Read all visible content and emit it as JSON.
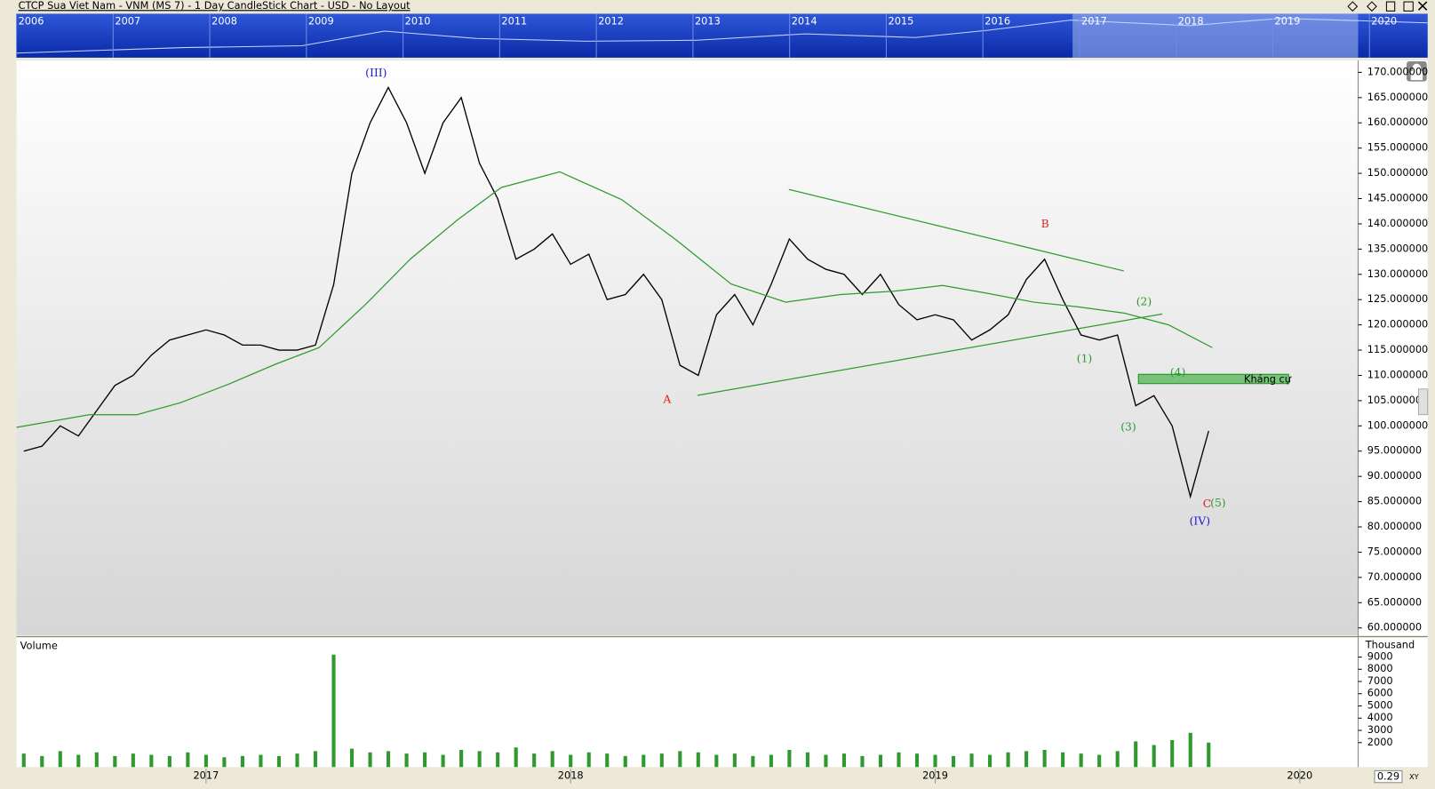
{
  "chart_data": [
    {
      "type": "line",
      "title": "CTCP Sua Viet Nam - VNM (MS 7) - 1 Day CandleStick Chart - USD - No Layout",
      "navigator_years": [
        "2006",
        "2007",
        "2008",
        "2009",
        "2010",
        "2011",
        "2012",
        "2013",
        "2014",
        "2015",
        "2016",
        "2017",
        "2018",
        "2019",
        "2020"
      ],
      "series": [
        {
          "color": "#000000",
          "x": [
            2016.5,
            2016.55,
            2016.6,
            2016.65,
            2016.7,
            2016.75,
            2016.8,
            2016.85,
            2016.9,
            2016.95,
            2017,
            2017.05,
            2017.1,
            2017.15,
            2017.2,
            2017.25,
            2017.3,
            2017.35,
            2017.4,
            2017.45,
            2017.5,
            2017.55,
            2017.6,
            2017.65,
            2017.7,
            2017.75,
            2017.8,
            2017.85,
            2017.9,
            2017.95,
            2018,
            2018.05,
            2018.1,
            2018.15,
            2018.2,
            2018.25,
            2018.3,
            2018.35,
            2018.4,
            2018.45,
            2018.5,
            2018.55,
            2018.6,
            2018.65,
            2018.7,
            2018.75,
            2018.8,
            2018.85,
            2018.9,
            2018.95,
            2019,
            2019.05,
            2019.1,
            2019.15,
            2019.2,
            2019.25,
            2019.3,
            2019.35,
            2019.4,
            2019.45,
            2019.5,
            2019.55,
            2019.6,
            2019.65,
            2019.7,
            2019.75
          ],
          "values": [
            95,
            96,
            100,
            98,
            103,
            108,
            110,
            114,
            117,
            118,
            119,
            118,
            116,
            116,
            115,
            115,
            116,
            128,
            150,
            160,
            167,
            160,
            150,
            160,
            165,
            152,
            145,
            133,
            135,
            138,
            132,
            134,
            125,
            126,
            130,
            125,
            112,
            110,
            122,
            126,
            120,
            128,
            137,
            133,
            131,
            130,
            126,
            130,
            124,
            121,
            122,
            121,
            117,
            119,
            122,
            129,
            133,
            125,
            118,
            117,
            118,
            104,
            106,
            100,
            86,
            99
          ]
        },
        {
          "color": "#2e9a2e",
          "x": [
            2016.48,
            2016.68,
            2016.81,
            2016.93,
            2017.06,
            2017.19,
            2017.31,
            2017.44,
            2017.56,
            2017.69,
            2017.81,
            2017.97,
            2018.14,
            2018.29,
            2018.44,
            2018.59,
            2018.74,
            2018.89,
            2019.02,
            2019.14,
            2019.27,
            2019.39,
            2019.52,
            2019.64,
            2019.76
          ],
          "values": [
            99.7,
            102.2,
            102.2,
            104.6,
            108.2,
            112.2,
            115.5,
            124.2,
            133,
            140.8,
            147.2,
            150.3,
            144.8,
            136.8,
            128.1,
            124.5,
            126,
            126.7,
            127.8,
            126.3,
            124.5,
            123.6,
            122.3,
            120,
            115.5
          ]
        }
      ],
      "xlim": [
        2016.48,
        2020.16
      ],
      "xticks": [
        2017,
        2018,
        2019,
        2020
      ],
      "ylim": [
        58.55,
        172.36
      ],
      "yticks": [
        {
          "value": 170,
          "label": "170.000000"
        },
        {
          "value": 165,
          "label": "165.000000"
        },
        {
          "value": 160,
          "label": "160.000000"
        },
        {
          "value": 155,
          "label": "155.000000"
        },
        {
          "value": 150,
          "label": "150.000000"
        },
        {
          "value": 145,
          "label": "145.000000"
        },
        {
          "value": 140,
          "label": "140.000000"
        },
        {
          "value": 135,
          "label": "135.000000"
        },
        {
          "value": 130,
          "label": "130.000000"
        },
        {
          "value": 125,
          "label": "125.000000"
        },
        {
          "value": 120,
          "label": "120.000000"
        },
        {
          "value": 115,
          "label": "115.000000"
        },
        {
          "value": 110,
          "label": "110.000000"
        },
        {
          "value": 105,
          "label": "105.000000"
        },
        {
          "value": 100,
          "label": "100.000000"
        },
        {
          "value": 95,
          "label": "95.000000"
        },
        {
          "value": 90,
          "label": "90.000000"
        },
        {
          "value": 85,
          "label": "85.000000"
        },
        {
          "value": 80,
          "label": "80.000000"
        },
        {
          "value": 75,
          "label": "75.000000"
        },
        {
          "value": 70,
          "label": "70.000000"
        },
        {
          "value": 65,
          "label": "65.000000"
        },
        {
          "value": 60,
          "label": "60.000000"
        }
      ],
      "annotations": [
        "(III)",
        "A",
        "B",
        "(1)",
        "(2)",
        "(3)",
        "(4)",
        "C",
        "(5)",
        "(IV)",
        "Kháng cự"
      ],
      "scale_value": "0.29",
      "scale_mode": "XY"
    },
    {
      "type": "bar",
      "title": "Volume",
      "unit": "Thousand",
      "color": "#2e9a2e",
      "x": [
        2016.5,
        2016.55,
        2016.6,
        2016.65,
        2016.7,
        2016.75,
        2016.8,
        2016.85,
        2016.9,
        2016.95,
        2017,
        2017.05,
        2017.1,
        2017.15,
        2017.2,
        2017.25,
        2017.3,
        2017.35,
        2017.4,
        2017.45,
        2017.5,
        2017.55,
        2017.6,
        2017.65,
        2017.7,
        2017.75,
        2017.8,
        2017.85,
        2017.9,
        2017.95,
        2018,
        2018.05,
        2018.1,
        2018.15,
        2018.2,
        2018.25,
        2018.3,
        2018.35,
        2018.4,
        2018.45,
        2018.5,
        2018.55,
        2018.6,
        2018.65,
        2018.7,
        2018.75,
        2018.8,
        2018.85,
        2018.9,
        2018.95,
        2019,
        2019.05,
        2019.1,
        2019.15,
        2019.2,
        2019.25,
        2019.3,
        2019.35,
        2019.4,
        2019.45,
        2019.5,
        2019.55,
        2019.6,
        2019.65,
        2019.7,
        2019.75
      ],
      "values": [
        1100,
        900,
        1300,
        1000,
        1200,
        900,
        1100,
        1000,
        900,
        1200,
        1000,
        800,
        900,
        1000,
        900,
        1100,
        1300,
        9200,
        1500,
        1200,
        1300,
        1100,
        1200,
        1000,
        1400,
        1300,
        1200,
        1600,
        1100,
        1300,
        1000,
        1200,
        1100,
        900,
        1000,
        1100,
        1300,
        1200,
        1000,
        1100,
        900,
        1000,
        1400,
        1200,
        1000,
        1100,
        900,
        1000,
        1200,
        1100,
        1000,
        900,
        1100,
        1000,
        1200,
        1300,
        1400,
        1200,
        1100,
        1000,
        1300,
        2100,
        1800,
        2200,
        2800,
        2000
      ],
      "ylim": [
        0,
        10560
      ],
      "yticks": [
        9000,
        8000,
        7000,
        6000,
        5000,
        4000,
        3000,
        2000
      ]
    }
  ]
}
